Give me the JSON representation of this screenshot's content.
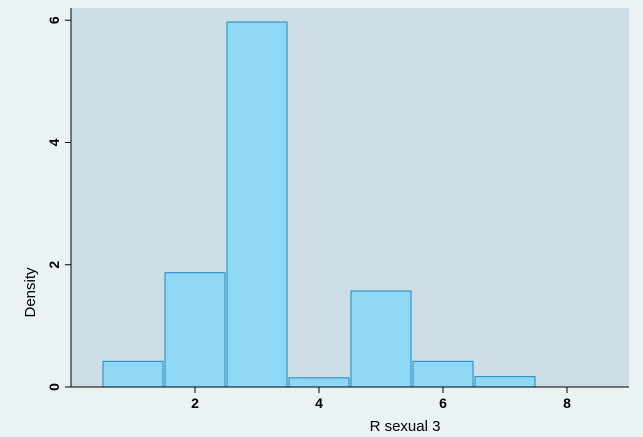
{
  "chart_data": {
    "type": "bar",
    "histogram": true,
    "xlabel": "R sexual 3",
    "ylabel": "Density",
    "xlim": [
      0,
      9.0
    ],
    "ylim": [
      0,
      6.2
    ],
    "x_ticks": [
      2,
      4,
      6,
      8
    ],
    "y_ticks": [
      0,
      2,
      4,
      6
    ],
    "grid": false,
    "bins": [
      {
        "start": 0.5,
        "end": 1.5,
        "value": 0.42
      },
      {
        "start": 1.5,
        "end": 2.5,
        "value": 1.87
      },
      {
        "start": 2.5,
        "end": 3.5,
        "value": 5.97
      },
      {
        "start": 3.5,
        "end": 4.5,
        "value": 0.15
      },
      {
        "start": 4.5,
        "end": 5.5,
        "value": 1.57
      },
      {
        "start": 5.5,
        "end": 6.5,
        "value": 0.42
      },
      {
        "start": 6.5,
        "end": 7.5,
        "value": 0.17
      }
    ],
    "colors": {
      "background": "#eaf2f3",
      "plot_area": "#cddde5",
      "bar_fill": "#8fd8f5",
      "bar_stroke": "#1c88c4"
    }
  }
}
